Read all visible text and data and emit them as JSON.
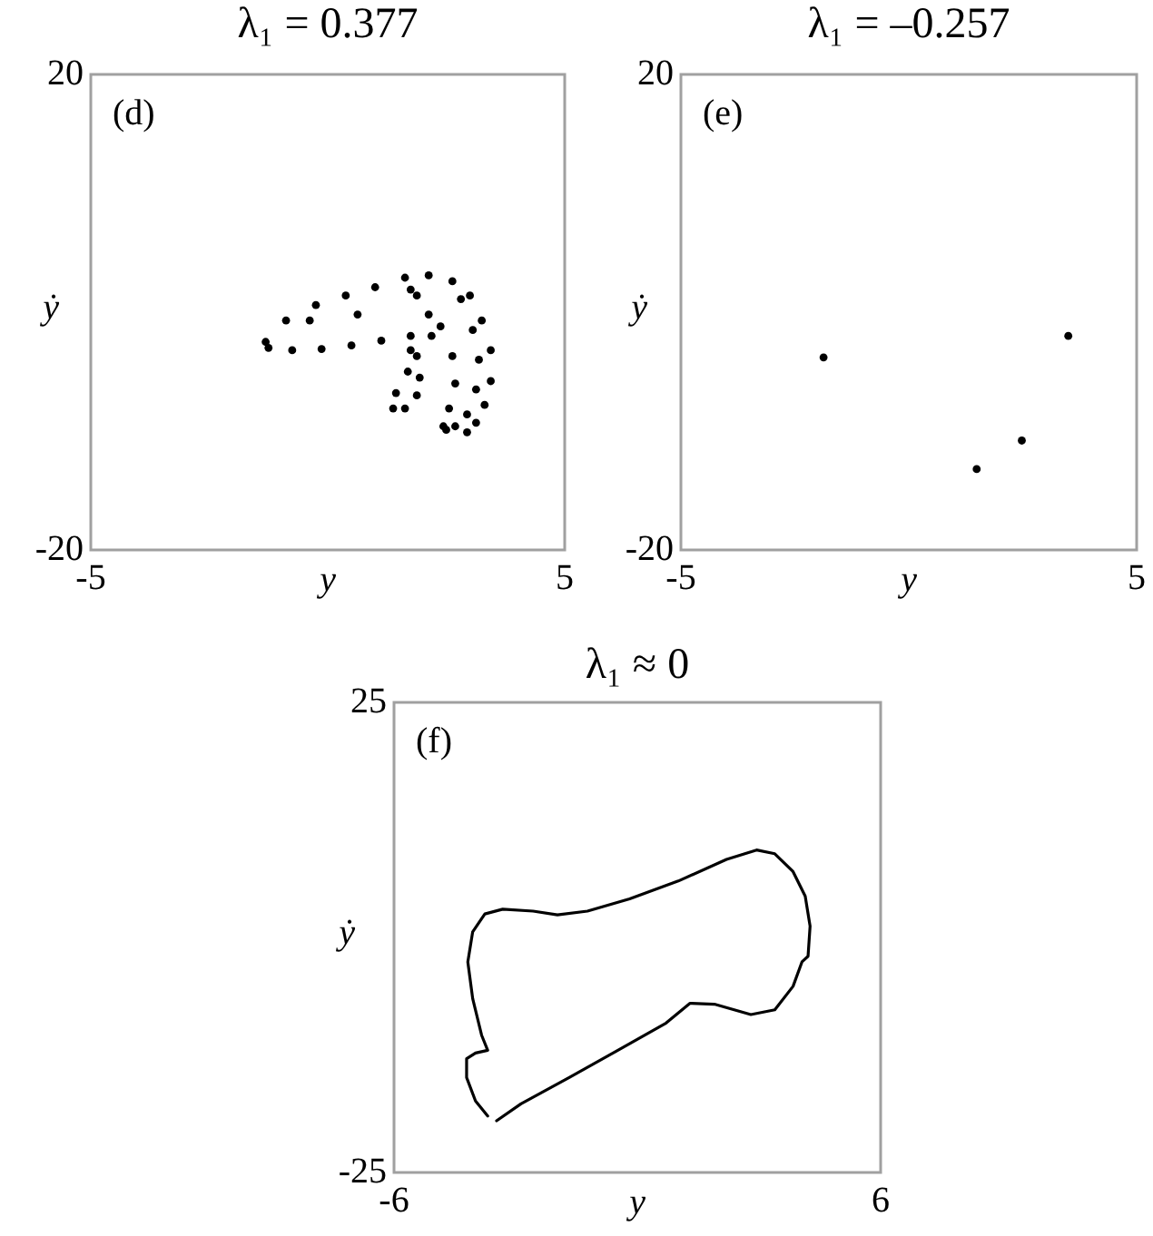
{
  "chart_data": [
    {
      "type": "scatter",
      "title": "λ₁ = 0.377",
      "xlabel": "y",
      "ylabel": "ẏ",
      "annotations": [
        "(d)"
      ],
      "color": "#000000",
      "marker": "circle",
      "xlim": [
        -5,
        5
      ],
      "ylim": [
        -20,
        20
      ],
      "xticks": [
        -5,
        5
      ],
      "yticks": [
        -20,
        20
      ],
      "x": [
        -1.31,
        -0.88,
        -0.25,
        0.38,
        1.0,
        1.63,
        2.13,
        2.63,
        3.0,
        3.25,
        3.44,
        3.44,
        3.31,
        3.13,
        2.94,
        2.81,
        3.06,
        3.19,
        3.13,
        2.94,
        2.69,
        2.5,
        2.38,
        2.63,
        2.69,
        2.56,
        2.44,
        -1.25,
        -0.75,
        -0.13,
        0.5,
        1.13,
        1.75,
        2.19,
        1.88,
        1.94,
        1.88,
        1.63,
        1.38,
        1.44,
        1.69,
        1.75,
        -0.38,
        0.63,
        1.75,
        2.13,
        1.88
      ],
      "values": [
        -2.5,
        -0.7,
        0.6,
        1.4,
        2.1,
        2.9,
        3.1,
        2.6,
        1.4,
        -0.7,
        -3.2,
        -5.8,
        -7.8,
        -9.3,
        -10.1,
        1.1,
        -1.5,
        -4.0,
        -6.5,
        -8.6,
        -9.6,
        -9.9,
        -1.2,
        -3.7,
        -6.0,
        -8.1,
        -9.6,
        -3.0,
        -3.2,
        -3.1,
        -2.8,
        -2.4,
        -2.0,
        -2.0,
        -3.7,
        -5.5,
        -7.0,
        -8.1,
        -8.1,
        -6.8,
        -5.0,
        -3.2,
        -0.7,
        -0.2,
        1.9,
        -0.2,
        1.4
      ]
    },
    {
      "type": "scatter",
      "title": "λ₁ = –0.257",
      "xlabel": "y",
      "ylabel": "ẏ",
      "annotations": [
        "(e)"
      ],
      "color": "#000000",
      "marker": "circle",
      "xlim": [
        -5,
        5
      ],
      "ylim": [
        -20,
        20
      ],
      "xticks": [
        -5,
        5
      ],
      "yticks": [
        -20,
        20
      ],
      "x": [
        -1.87,
        3.5,
        2.48,
        1.49
      ],
      "values": [
        -3.8,
        -2.0,
        -10.8,
        -13.2
      ]
    },
    {
      "type": "line",
      "title": "λ₁ ≈ 0",
      "xlabel": "y",
      "ylabel": "ẏ",
      "annotations": [
        "(f)"
      ],
      "xlim": [
        -6,
        6
      ],
      "ylim": [
        -25,
        25
      ],
      "xticks": [
        -6,
        6
      ],
      "yticks": [
        -25,
        25
      ],
      "series": [
        {
          "color": "#000000",
          "x": [
            -3.47,
            -2.87,
            -1.68,
            -0.48,
            0.71,
            1.3,
            1.9,
            2.8,
            3.39,
            3.84,
            4.06,
            4.21,
            4.26,
            4.14,
            3.84,
            3.39,
            2.94,
            2.2,
            1.01,
            -0.19,
            -1.23,
            -1.97,
            -2.57,
            -3.32,
            -3.76,
            -4.06,
            -4.18,
            -4.06,
            -3.84,
            -3.69,
            -3.99,
            -4.21,
            -4.21,
            -3.99,
            -3.69
          ],
          "values": [
            -19.5,
            -17.7,
            -14.9,
            -12.0,
            -9.1,
            -7.0,
            -7.1,
            -8.2,
            -7.7,
            -5.2,
            -2.6,
            -2.0,
            1.2,
            4.4,
            7.0,
            8.9,
            9.3,
            8.3,
            6.0,
            4.1,
            2.8,
            2.4,
            2.8,
            3.0,
            2.5,
            0.6,
            -2.6,
            -6.5,
            -10.4,
            -12.0,
            -12.3,
            -12.9,
            -14.9,
            -17.4,
            -19.0
          ]
        }
      ]
    }
  ]
}
